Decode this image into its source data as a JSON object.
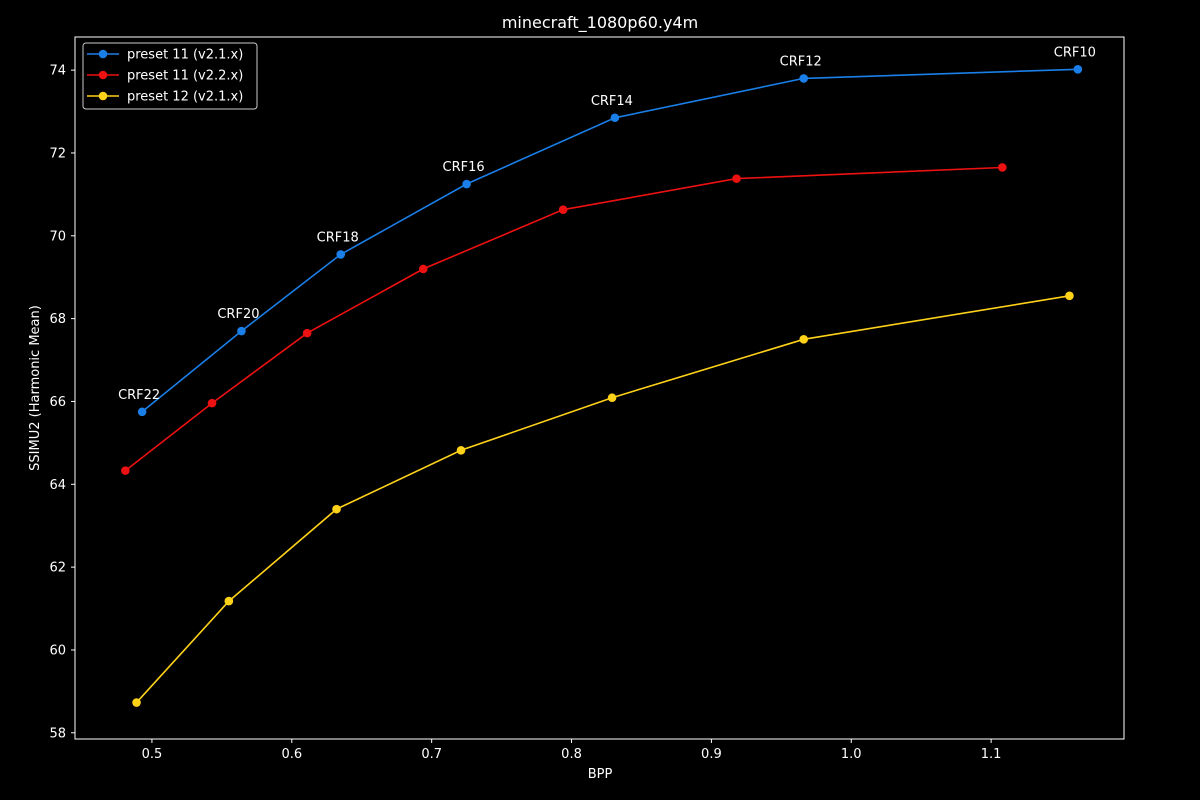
{
  "chart_data": {
    "type": "line",
    "title": "minecraft_1080p60.y4m",
    "xlabel": "BPP",
    "ylabel": "SSIMU2 (Harmonic Mean)",
    "xlim": [
      0.445,
      1.195
    ],
    "ylim": [
      57.85,
      74.8
    ],
    "xticks": [
      "0.5",
      "0.6",
      "0.7",
      "0.8",
      "0.9",
      "1.0",
      "1.1"
    ],
    "xtick_values": [
      0.5,
      0.6,
      0.7,
      0.8,
      0.9,
      1.0,
      1.1
    ],
    "yticks": [
      "58",
      "60",
      "62",
      "64",
      "66",
      "68",
      "70",
      "72",
      "74"
    ],
    "ytick_values": [
      58,
      60,
      62,
      64,
      66,
      68,
      70,
      72,
      74
    ],
    "grid": false,
    "legend_position": "upper-left",
    "series": [
      {
        "name": "preset 11 (v2.1.x)",
        "color": "#1a7fe8",
        "x": [
          0.493,
          0.564,
          0.635,
          0.725,
          0.831,
          0.966,
          1.162
        ],
        "y": [
          65.75,
          67.7,
          69.55,
          71.25,
          72.85,
          73.8,
          74.02
        ]
      },
      {
        "name": "preset 11 (v2.2.x)",
        "color": "#ee1111",
        "x": [
          0.481,
          0.543,
          0.611,
          0.694,
          0.794,
          0.918,
          1.108
        ],
        "y": [
          64.33,
          65.96,
          67.65,
          69.2,
          70.63,
          71.38,
          71.65
        ]
      },
      {
        "name": "preset 12 (v2.1.x)",
        "color": "#ffd21a",
        "x": [
          0.489,
          0.555,
          0.632,
          0.721,
          0.829,
          0.966,
          1.156
        ],
        "y": [
          58.73,
          61.18,
          63.4,
          64.82,
          66.09,
          67.5,
          68.55
        ]
      }
    ],
    "annotations": [
      {
        "text": "CRF22",
        "x": 0.493,
        "y": 65.75
      },
      {
        "text": "CRF20",
        "x": 0.564,
        "y": 67.7
      },
      {
        "text": "CRF18",
        "x": 0.635,
        "y": 69.55
      },
      {
        "text": "CRF16",
        "x": 0.725,
        "y": 71.25
      },
      {
        "text": "CRF14",
        "x": 0.831,
        "y": 72.85
      },
      {
        "text": "CRF12",
        "x": 0.966,
        "y": 73.8
      },
      {
        "text": "CRF10",
        "x": 1.162,
        "y": 74.02
      }
    ]
  }
}
